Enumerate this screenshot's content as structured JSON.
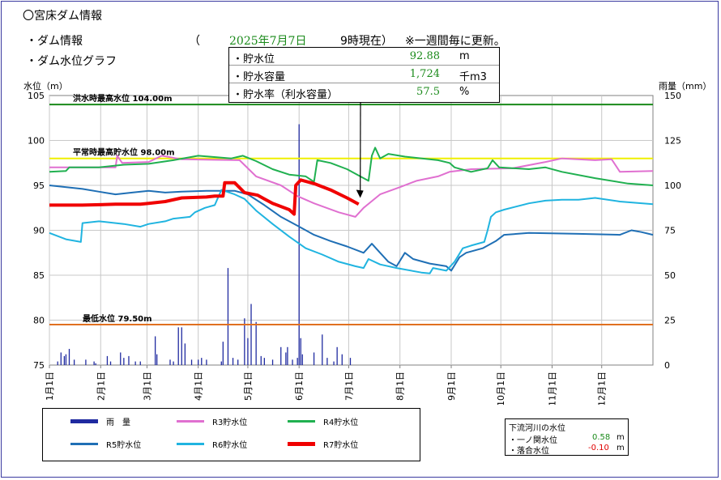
{
  "header": {
    "title": "〇宮床ダム情報",
    "info_label": "・ダム情報",
    "paren_open": "（",
    "date": "2025年7月7日",
    "time": "9時現在）",
    "update_note": "※一週間毎に更新。",
    "graph_label": "・ダム水位グラフ"
  },
  "info_box": {
    "rows": [
      {
        "label": "・貯水位",
        "value": "92.88",
        "unit": "m"
      },
      {
        "label": "・貯水容量",
        "value": "1,724",
        "unit": "千m3"
      },
      {
        "label": "・貯水率（利水容量）",
        "value": "57.5",
        "unit": "%"
      }
    ]
  },
  "legend": {
    "items": [
      {
        "label": "雨　量",
        "color": "#1f2aa0"
      },
      {
        "label": "R3貯水位",
        "color": "#e070d0"
      },
      {
        "label": "R4貯水位",
        "color": "#20b050"
      },
      {
        "label": "R5貯水位",
        "color": "#1f6fb5"
      },
      {
        "label": "R6貯水位",
        "color": "#20b4e0"
      },
      {
        "label": "R7貯水位",
        "color": "#f00000"
      }
    ]
  },
  "river_box": {
    "title": "下流河川の水位",
    "rows": [
      {
        "label": "・一ノ関水位",
        "value": "0.58",
        "unit": "m",
        "color": "#1a8a1a"
      },
      {
        "label": "・落合水位",
        "value": "-0.10",
        "unit": "m",
        "color": "#e00000"
      }
    ]
  },
  "chart_data": {
    "type": "line",
    "ylabel": "水位（m）",
    "y2label": "雨量（mm）",
    "ylim": [
      75,
      105
    ],
    "y2lim": [
      0,
      150
    ],
    "yticks": [
      75,
      80,
      85,
      90,
      95,
      100,
      105
    ],
    "y2ticks": [
      0,
      25,
      50,
      75,
      100,
      125,
      150
    ],
    "x_categories": [
      "1月1日",
      "2月1日",
      "3月1日",
      "4月1日",
      "5月1日",
      "6月1日",
      "7月1日",
      "8月1日",
      "9月1日",
      "10月1日",
      "11月1日",
      "12月1日"
    ],
    "x_days": [
      0,
      31,
      59,
      90,
      120,
      151,
      181,
      212,
      243,
      273,
      304,
      334
    ],
    "x_max": 365,
    "grid": true,
    "reference_lines": [
      {
        "label": "洪水時最高水位 104.00m",
        "value": 104.0,
        "color": "#1a8a1a"
      },
      {
        "label": "平常時最高貯水位 98.00m",
        "value": 98.0,
        "color": "#f0f000"
      },
      {
        "label": "最低水位 79.50m",
        "value": 79.5,
        "color": "#e07020"
      }
    ],
    "series": [
      {
        "name": "R3貯水位",
        "color": "#e070d0",
        "width": 2,
        "points": [
          [
            0,
            97.0
          ],
          [
            40,
            97.0
          ],
          [
            41,
            98.3
          ],
          [
            44,
            97.5
          ],
          [
            60,
            97.6
          ],
          [
            68,
            98.3
          ],
          [
            80,
            97.9
          ],
          [
            115,
            97.8
          ],
          [
            125,
            96.0
          ],
          [
            140,
            95.0
          ],
          [
            150,
            93.8
          ],
          [
            160,
            93.0
          ],
          [
            175,
            92.0
          ],
          [
            185,
            91.5
          ],
          [
            190,
            92.5
          ],
          [
            200,
            94.0
          ],
          [
            212,
            94.8
          ],
          [
            222,
            95.5
          ],
          [
            235,
            96.0
          ],
          [
            242,
            96.5
          ],
          [
            255,
            96.8
          ],
          [
            280,
            96.9
          ],
          [
            300,
            97.6
          ],
          [
            310,
            98.0
          ],
          [
            330,
            97.8
          ],
          [
            340,
            97.9
          ],
          [
            345,
            96.5
          ],
          [
            365,
            96.6
          ]
        ]
      },
      {
        "name": "R4貯水位",
        "color": "#20b050",
        "width": 2,
        "points": [
          [
            0,
            96.5
          ],
          [
            10,
            96.6
          ],
          [
            12,
            97.0
          ],
          [
            30,
            97.0
          ],
          [
            45,
            97.3
          ],
          [
            60,
            97.4
          ],
          [
            75,
            97.8
          ],
          [
            90,
            98.3
          ],
          [
            110,
            98.0
          ],
          [
            117,
            98.3
          ],
          [
            125,
            97.7
          ],
          [
            135,
            96.8
          ],
          [
            145,
            96.2
          ],
          [
            155,
            96.0
          ],
          [
            160,
            95.4
          ],
          [
            162,
            97.8
          ],
          [
            170,
            97.5
          ],
          [
            180,
            96.8
          ],
          [
            188,
            96.0
          ],
          [
            193,
            95.5
          ],
          [
            195,
            98.3
          ],
          [
            197,
            99.2
          ],
          [
            200,
            98.0
          ],
          [
            205,
            98.5
          ],
          [
            215,
            98.2
          ],
          [
            235,
            97.8
          ],
          [
            242,
            97.5
          ],
          [
            245,
            97.0
          ],
          [
            255,
            96.5
          ],
          [
            265,
            96.9
          ],
          [
            268,
            97.8
          ],
          [
            272,
            97.0
          ],
          [
            290,
            96.8
          ],
          [
            300,
            97.0
          ],
          [
            310,
            96.5
          ],
          [
            330,
            95.8
          ],
          [
            350,
            95.2
          ],
          [
            365,
            95.0
          ]
        ]
      },
      {
        "name": "R5貯水位",
        "color": "#1f6fb5",
        "width": 2,
        "points": [
          [
            0,
            95.0
          ],
          [
            20,
            94.6
          ],
          [
            30,
            94.3
          ],
          [
            40,
            94.0
          ],
          [
            50,
            94.2
          ],
          [
            60,
            94.4
          ],
          [
            70,
            94.2
          ],
          [
            80,
            94.3
          ],
          [
            95,
            94.4
          ],
          [
            112,
            94.4
          ],
          [
            120,
            94.0
          ],
          [
            130,
            92.8
          ],
          [
            140,
            91.5
          ],
          [
            150,
            90.5
          ],
          [
            160,
            89.5
          ],
          [
            170,
            88.8
          ],
          [
            180,
            88.2
          ],
          [
            190,
            87.5
          ],
          [
            195,
            88.5
          ],
          [
            200,
            87.5
          ],
          [
            205,
            86.5
          ],
          [
            210,
            86.0
          ],
          [
            215,
            87.5
          ],
          [
            220,
            86.8
          ],
          [
            230,
            86.3
          ],
          [
            240,
            86.0
          ],
          [
            243,
            85.5
          ],
          [
            248,
            87.0
          ],
          [
            252,
            87.5
          ],
          [
            262,
            88.0
          ],
          [
            270,
            88.8
          ],
          [
            275,
            89.5
          ],
          [
            290,
            89.7
          ],
          [
            320,
            89.6
          ],
          [
            345,
            89.5
          ],
          [
            352,
            90.0
          ],
          [
            358,
            89.8
          ],
          [
            365,
            89.5
          ]
        ]
      },
      {
        "name": "R6貯水位",
        "color": "#20b4e0",
        "width": 2,
        "points": [
          [
            0,
            89.7
          ],
          [
            10,
            89.0
          ],
          [
            19,
            88.7
          ],
          [
            20,
            90.8
          ],
          [
            30,
            91.0
          ],
          [
            45,
            90.7
          ],
          [
            55,
            90.4
          ],
          [
            60,
            90.7
          ],
          [
            70,
            91.0
          ],
          [
            75,
            91.3
          ],
          [
            85,
            91.5
          ],
          [
            88,
            92.0
          ],
          [
            94,
            92.5
          ],
          [
            100,
            92.8
          ],
          [
            104,
            94.5
          ],
          [
            112,
            94.0
          ],
          [
            118,
            93.5
          ],
          [
            125,
            92.2
          ],
          [
            135,
            90.7
          ],
          [
            145,
            89.3
          ],
          [
            155,
            88.0
          ],
          [
            165,
            87.3
          ],
          [
            175,
            86.5
          ],
          [
            185,
            86.0
          ],
          [
            190,
            85.8
          ],
          [
            193,
            86.8
          ],
          [
            200,
            86.2
          ],
          [
            210,
            85.8
          ],
          [
            225,
            85.3
          ],
          [
            230,
            85.2
          ],
          [
            232,
            85.8
          ],
          [
            240,
            85.5
          ],
          [
            245,
            86.5
          ],
          [
            250,
            88.0
          ],
          [
            255,
            88.3
          ],
          [
            263,
            88.7
          ],
          [
            265,
            90.0
          ],
          [
            267,
            91.5
          ],
          [
            270,
            92.0
          ],
          [
            275,
            92.3
          ],
          [
            290,
            93.0
          ],
          [
            300,
            93.3
          ],
          [
            310,
            93.4
          ],
          [
            320,
            93.4
          ],
          [
            330,
            93.6
          ],
          [
            345,
            93.2
          ],
          [
            365,
            92.9
          ]
        ]
      },
      {
        "name": "R7貯水位",
        "color": "#f00000",
        "width": 4,
        "points": [
          [
            0,
            92.8
          ],
          [
            20,
            92.8
          ],
          [
            40,
            92.9
          ],
          [
            55,
            92.9
          ],
          [
            60,
            93.0
          ],
          [
            70,
            93.2
          ],
          [
            80,
            93.6
          ],
          [
            95,
            93.7
          ],
          [
            100,
            93.8
          ],
          [
            105,
            93.8
          ],
          [
            106,
            95.3
          ],
          [
            112,
            95.3
          ],
          [
            118,
            94.2
          ],
          [
            126,
            93.9
          ],
          [
            130,
            93.5
          ],
          [
            135,
            93.0
          ],
          [
            145,
            92.3
          ],
          [
            148,
            91.8
          ],
          [
            149,
            95.0
          ],
          [
            152,
            95.6
          ],
          [
            160,
            95.2
          ],
          [
            170,
            94.5
          ],
          [
            180,
            93.6
          ],
          [
            187,
            92.9
          ]
        ]
      }
    ],
    "rainfall": [
      [
        5,
        2
      ],
      [
        7,
        7
      ],
      [
        9,
        5
      ],
      [
        10,
        6
      ],
      [
        12,
        9
      ],
      [
        15,
        3
      ],
      [
        22,
        3
      ],
      [
        27,
        2
      ],
      [
        28,
        1
      ],
      [
        35,
        5
      ],
      [
        37,
        2
      ],
      [
        43,
        7
      ],
      [
        45,
        4
      ],
      [
        48,
        5
      ],
      [
        52,
        2
      ],
      [
        55,
        2
      ],
      [
        64,
        16
      ],
      [
        65,
        6
      ],
      [
        73,
        3
      ],
      [
        75,
        2
      ],
      [
        78,
        21
      ],
      [
        80,
        21
      ],
      [
        82,
        12
      ],
      [
        86,
        3
      ],
      [
        90,
        3
      ],
      [
        92,
        4
      ],
      [
        95,
        3
      ],
      [
        104,
        2
      ],
      [
        105,
        13
      ],
      [
        108,
        54
      ],
      [
        111,
        4
      ],
      [
        114,
        3
      ],
      [
        118,
        26
      ],
      [
        120,
        15
      ],
      [
        122,
        34
      ],
      [
        125,
        24
      ],
      [
        128,
        5
      ],
      [
        130,
        4
      ],
      [
        135,
        3
      ],
      [
        140,
        10
      ],
      [
        143,
        7
      ],
      [
        144,
        10
      ],
      [
        147,
        3
      ],
      [
        150,
        4
      ],
      [
        151,
        134
      ],
      [
        152,
        15
      ],
      [
        153,
        6
      ],
      [
        160,
        7
      ],
      [
        165,
        17
      ],
      [
        168,
        4
      ],
      [
        172,
        2
      ],
      [
        174,
        10
      ],
      [
        177,
        6
      ],
      [
        182,
        4
      ]
    ],
    "annotation_point": [
      187,
      92.88
    ]
  }
}
